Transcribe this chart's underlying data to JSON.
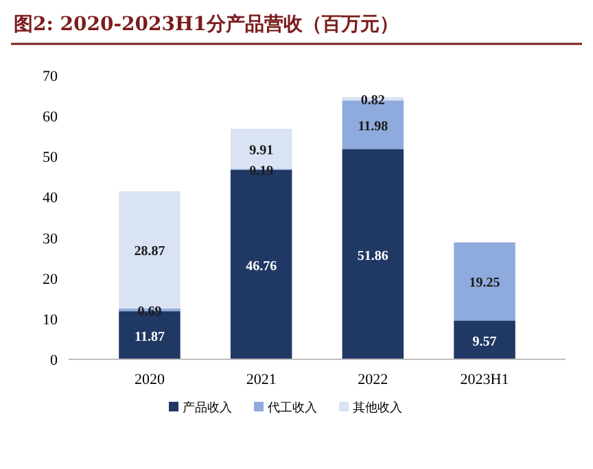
{
  "chart_data": {
    "type": "bar",
    "title": "图2: 2020-2023H1分产品营收（百万元）",
    "categories": [
      "2020",
      "2021",
      "2022",
      "2023H1"
    ],
    "stacked": true,
    "data_labels": true,
    "ylim": [
      0,
      70
    ],
    "yticks": [
      0,
      10,
      20,
      30,
      40,
      50,
      60,
      70
    ],
    "legend": "bottom",
    "series": [
      {
        "name": "产品收入",
        "color": "#203864",
        "values": [
          11.87,
          46.76,
          51.86,
          9.57
        ]
      },
      {
        "name": "代工收入",
        "color": "#8faadc",
        "values": [
          0.69,
          0.19,
          11.98,
          19.25
        ]
      },
      {
        "name": "其他收入",
        "color": "#dae3f3",
        "values": [
          28.87,
          9.91,
          0.82,
          null
        ]
      }
    ]
  }
}
